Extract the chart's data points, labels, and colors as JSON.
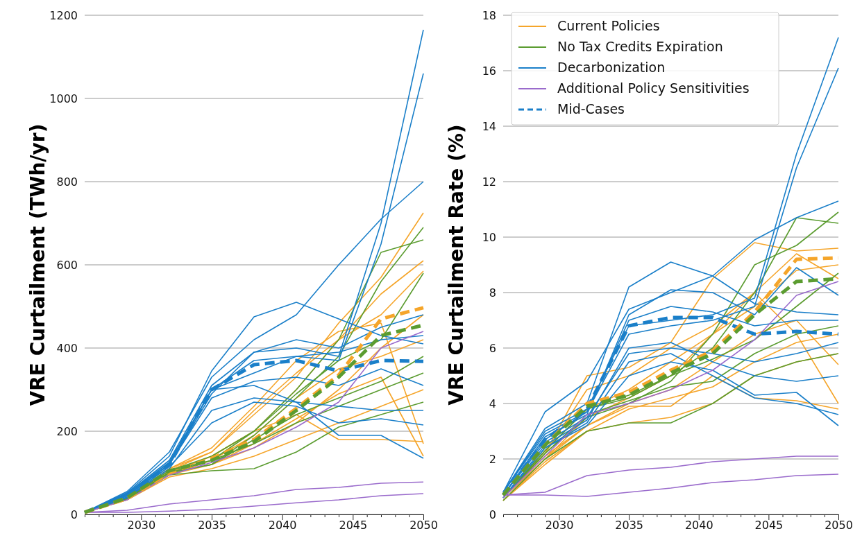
{
  "chart_data": [
    {
      "type": "line",
      "ylabel": "VRE Curtailment (TWh/yr)",
      "x": [
        2026,
        2029,
        2032,
        2035,
        2038,
        2041,
        2044,
        2047,
        2050
      ],
      "xlim": [
        2026,
        2050
      ],
      "xticks": [
        {
          "value": 2026,
          "label": null
        },
        {
          "value": 2027,
          "label": null
        },
        {
          "value": 2028,
          "label": null
        },
        {
          "value": 2029,
          "label": null
        },
        2030,
        {
          "value": 2031,
          "label": null
        },
        {
          "value": 2032,
          "label": null
        },
        {
          "value": 2033,
          "label": null
        },
        {
          "value": 2034,
          "label": null
        },
        2035,
        {
          "value": 2036,
          "label": null
        },
        {
          "value": 2037,
          "label": null
        },
        {
          "value": 2038,
          "label": null
        },
        {
          "value": 2039,
          "label": null
        },
        2040,
        {
          "value": 2041,
          "label": null
        },
        {
          "value": 2042,
          "label": null
        },
        {
          "value": 2043,
          "label": null
        },
        {
          "value": 2044,
          "label": null
        },
        2045,
        {
          "value": 2046,
          "label": null
        },
        {
          "value": 2047,
          "label": null
        },
        {
          "value": 2048,
          "label": null
        },
        {
          "value": 2049,
          "label": null
        },
        2050
      ],
      "ylim": [
        0,
        1200
      ],
      "yticks": [
        0,
        200,
        400,
        600,
        800,
        1000,
        1200
      ],
      "grid": "y",
      "legend": false,
      "series": [
        {
          "color": "#f5a52a",
          "values": [
            5,
            40,
            110,
            150,
            240,
            330,
            460,
            570,
            725
          ]
        },
        {
          "color": "#f5a52a",
          "values": [
            5,
            38,
            100,
            140,
            200,
            300,
            420,
            530,
            610
          ]
        },
        {
          "color": "#f5a52a",
          "values": [
            5,
            35,
            95,
            120,
            160,
            220,
            300,
            400,
            480
          ]
        },
        {
          "color": "#f5a52a",
          "values": [
            5,
            40,
            110,
            160,
            260,
            370,
            440,
            460,
            170
          ]
        },
        {
          "color": "#f5a52a",
          "values": [
            5,
            35,
            90,
            110,
            140,
            180,
            220,
            260,
            300
          ]
        },
        {
          "color": "#f5a52a",
          "values": [
            5,
            38,
            100,
            140,
            200,
            240,
            180,
            180,
            175
          ]
        },
        {
          "color": "#f5a52a",
          "values": [
            5,
            37,
            95,
            130,
            190,
            280,
            350,
            380,
            420
          ]
        },
        {
          "color": "#f5a52a",
          "values": [
            5,
            36,
            100,
            120,
            170,
            230,
            290,
            330,
            140
          ]
        },
        {
          "color": "#f5a52a",
          "values": [
            5,
            38,
            105,
            150,
            250,
            340,
            420,
            480,
            585
          ]
        },
        {
          "color": "#5b9c30",
          "values": [
            5,
            40,
            105,
            130,
            200,
            300,
            420,
            630,
            660
          ]
        },
        {
          "color": "#5b9c30",
          "values": [
            5,
            38,
            100,
            120,
            190,
            280,
            380,
            560,
            690
          ]
        },
        {
          "color": "#5b9c30",
          "values": [
            5,
            36,
            95,
            105,
            110,
            150,
            210,
            240,
            270
          ]
        },
        {
          "color": "#5b9c30",
          "values": [
            5,
            38,
            100,
            120,
            180,
            240,
            280,
            320,
            380
          ]
        },
        {
          "color": "#5b9c30",
          "values": [
            5,
            37,
            100,
            130,
            170,
            220,
            260,
            300,
            340
          ]
        },
        {
          "color": "#5b9c30",
          "values": [
            5,
            40,
            105,
            140,
            200,
            290,
            370,
            420,
            580
          ]
        },
        {
          "color": "#1a7fc9",
          "values": [
            5,
            50,
            130,
            310,
            390,
            400,
            380,
            700,
            1165
          ]
        },
        {
          "color": "#1a7fc9",
          "values": [
            5,
            48,
            125,
            300,
            370,
            380,
            370,
            650,
            1060
          ]
        },
        {
          "color": "#1a7fc9",
          "values": [
            5,
            55,
            150,
            330,
            420,
            480,
            600,
            710,
            800
          ]
        },
        {
          "color": "#1a7fc9",
          "values": [
            5,
            52,
            140,
            345,
            475,
            510,
            470,
            430,
            410
          ]
        },
        {
          "color": "#1a7fc9",
          "values": [
            5,
            45,
            120,
            290,
            390,
            420,
            400,
            450,
            480
          ]
        },
        {
          "color": "#1a7fc9",
          "values": [
            5,
            45,
            120,
            280,
            320,
            330,
            310,
            350,
            310
          ]
        },
        {
          "color": "#1a7fc9",
          "values": [
            5,
            42,
            115,
            220,
            270,
            260,
            220,
            230,
            215
          ]
        },
        {
          "color": "#1a7fc9",
          "values": [
            5,
            40,
            110,
            250,
            280,
            270,
            260,
            250,
            250
          ]
        },
        {
          "color": "#1a7fc9",
          "values": [
            5,
            48,
            125,
            300,
            310,
            270,
            190,
            190,
            135
          ]
        },
        {
          "color": "#1a7fc9",
          "values": [
            5,
            45,
            120,
            300,
            340,
            380,
            390,
            420,
            430
          ]
        },
        {
          "color": "#9a6bcc",
          "values": [
            5,
            10,
            25,
            35,
            45,
            60,
            65,
            75,
            78
          ]
        },
        {
          "color": "#9a6bcc",
          "values": [
            5,
            5,
            8,
            12,
            20,
            28,
            35,
            45,
            50
          ]
        },
        {
          "color": "#9a6bcc",
          "values": [
            5,
            35,
            95,
            125,
            160,
            210,
            270,
            400,
            440
          ]
        },
        {
          "color": "#1a7fc9",
          "line_style": "dashed",
          "values": [
            5,
            45,
            120,
            300,
            360,
            370,
            345,
            370,
            368
          ]
        },
        {
          "color": "#f5a52a",
          "line_style": "dashed",
          "values": [
            5,
            38,
            100,
            135,
            180,
            255,
            335,
            470,
            497
          ]
        },
        {
          "color": "#5b9c30",
          "line_style": "dashed",
          "values": [
            5,
            40,
            105,
            130,
            175,
            250,
            330,
            430,
            455
          ]
        }
      ]
    },
    {
      "type": "line",
      "ylabel": "VRE Curtailment Rate (%)",
      "x": [
        2026,
        2029,
        2032,
        2035,
        2038,
        2041,
        2044,
        2047,
        2050
      ],
      "xlim": [
        2026,
        2050
      ],
      "xticks": [
        {
          "value": 2026,
          "label": null
        },
        {
          "value": 2027,
          "label": null
        },
        {
          "value": 2028,
          "label": null
        },
        {
          "value": 2029,
          "label": null
        },
        2030,
        {
          "value": 2031,
          "label": null
        },
        {
          "value": 2032,
          "label": null
        },
        {
          "value": 2033,
          "label": null
        },
        {
          "value": 2034,
          "label": null
        },
        2035,
        {
          "value": 2036,
          "label": null
        },
        {
          "value": 2037,
          "label": null
        },
        {
          "value": 2038,
          "label": null
        },
        {
          "value": 2039,
          "label": null
        },
        2040,
        {
          "value": 2041,
          "label": null
        },
        {
          "value": 2042,
          "label": null
        },
        {
          "value": 2043,
          "label": null
        },
        {
          "value": 2044,
          "label": null
        },
        2045,
        {
          "value": 2046,
          "label": null
        },
        {
          "value": 2047,
          "label": null
        },
        {
          "value": 2048,
          "label": null
        },
        {
          "value": 2049,
          "label": null
        },
        2050
      ],
      "ylim": [
        0,
        18
      ],
      "yticks": [
        0,
        2,
        4,
        6,
        8,
        10,
        12,
        14,
        16,
        18
      ],
      "grid": "y",
      "legend": "top left",
      "series": [
        {
          "name": "Current Policies",
          "color": "#f5a52a",
          "values": [
            0.6,
            2.2,
            5.0,
            5.3,
            6.2,
            8.5,
            9.8,
            9.5,
            9.6
          ]
        },
        {
          "color": "#f5a52a",
          "values": [
            0.6,
            2.0,
            3.5,
            4.2,
            5.0,
            6.5,
            8.0,
            9.4,
            8.5
          ]
        },
        {
          "color": "#f5a52a",
          "values": [
            0.5,
            1.8,
            3.0,
            3.3,
            3.5,
            4.0,
            5.0,
            5.5,
            5.8
          ]
        },
        {
          "color": "#f5a52a",
          "values": [
            0.6,
            2.1,
            3.2,
            3.9,
            3.9,
            5.0,
            4.2,
            4.1,
            3.8
          ]
        },
        {
          "color": "#f5a52a",
          "values": [
            0.6,
            2.2,
            4.5,
            5.0,
            6.0,
            6.8,
            8.0,
            6.5,
            4.0
          ]
        },
        {
          "color": "#f5a52a",
          "values": [
            0.5,
            1.9,
            3.0,
            3.8,
            4.2,
            4.6,
            5.5,
            6.2,
            6.5
          ]
        },
        {
          "color": "#f5a52a",
          "values": [
            0.6,
            2.3,
            3.8,
            4.5,
            5.5,
            6.5,
            7.5,
            8.8,
            9.0
          ]
        },
        {
          "color": "#f5a52a",
          "values": [
            0.5,
            2.0,
            3.2,
            4.0,
            4.5,
            5.5,
            6.5,
            7.0,
            5.4
          ]
        },
        {
          "name": "No Tax Credits Expiration",
          "color": "#5b9c30",
          "values": [
            0.6,
            2.3,
            3.8,
            4.2,
            5.0,
            6.0,
            8.0,
            10.7,
            10.5
          ]
        },
        {
          "color": "#5b9c30",
          "values": [
            0.6,
            2.2,
            3.5,
            4.0,
            4.8,
            6.5,
            9.0,
            9.7,
            10.9
          ]
        },
        {
          "color": "#5b9c30",
          "values": [
            0.5,
            2.0,
            3.0,
            3.3,
            3.3,
            4.0,
            5.0,
            5.5,
            5.8
          ]
        },
        {
          "color": "#5b9c30",
          "values": [
            0.6,
            2.2,
            3.6,
            4.1,
            4.6,
            4.8,
            5.8,
            6.5,
            6.8
          ]
        },
        {
          "color": "#5b9c30",
          "values": [
            0.6,
            2.3,
            3.8,
            4.3,
            5.0,
            5.6,
            6.3,
            7.5,
            8.7
          ]
        },
        {
          "name": "Decarbonization",
          "color": "#1a7fc9",
          "values": [
            0.8,
            3.0,
            3.8,
            6.8,
            7.0,
            7.2,
            7.8,
            13.0,
            17.2
          ]
        },
        {
          "color": "#1a7fc9",
          "values": [
            0.8,
            2.9,
            3.7,
            6.5,
            6.8,
            7.0,
            7.5,
            12.5,
            16.1
          ]
        },
        {
          "color": "#1a7fc9",
          "values": [
            0.8,
            3.7,
            4.8,
            7.4,
            8.0,
            8.6,
            9.9,
            10.7,
            11.3
          ]
        },
        {
          "color": "#1a7fc9",
          "values": [
            0.8,
            3.1,
            4.0,
            8.2,
            9.1,
            8.6,
            7.6,
            7.3,
            7.2
          ]
        },
        {
          "color": "#1a7fc9",
          "values": [
            0.7,
            2.8,
            3.6,
            7.2,
            8.1,
            8.0,
            7.2,
            8.9,
            7.9
          ]
        },
        {
          "color": "#1a7fc9",
          "values": [
            0.6,
            2.5,
            3.4,
            6.0,
            6.2,
            5.5,
            5.0,
            4.8,
            5.0
          ]
        },
        {
          "color": "#1a7fc9",
          "values": [
            0.6,
            2.4,
            3.2,
            5.0,
            5.5,
            5.2,
            4.3,
            4.4,
            3.2
          ]
        },
        {
          "color": "#1a7fc9",
          "values": [
            0.7,
            2.6,
            3.5,
            5.8,
            6.0,
            5.8,
            5.5,
            5.8,
            6.2
          ]
        },
        {
          "color": "#1a7fc9",
          "values": [
            0.7,
            2.7,
            3.7,
            7.0,
            7.5,
            7.3,
            6.8,
            7.0,
            7.0
          ]
        },
        {
          "color": "#1a7fc9",
          "values": [
            0.6,
            2.4,
            3.3,
            5.5,
            5.8,
            5.0,
            4.2,
            4.0,
            3.6
          ]
        },
        {
          "name": "Additional Policy Sensitivities",
          "color": "#9a6bcc",
          "values": [
            0.7,
            0.8,
            1.4,
            1.6,
            1.7,
            1.9,
            2.0,
            2.1,
            2.1
          ]
        },
        {
          "color": "#9a6bcc",
          "values": [
            0.7,
            0.7,
            0.65,
            0.8,
            0.95,
            1.15,
            1.25,
            1.4,
            1.45
          ]
        },
        {
          "color": "#9a6bcc",
          "values": [
            0.6,
            2.1,
            3.6,
            4.0,
            4.5,
            5.2,
            6.3,
            7.9,
            8.4
          ]
        },
        {
          "name": "Mid-Cases",
          "color": "#1a7fc9",
          "line_style": "dashed",
          "values": [
            0.7,
            2.7,
            3.8,
            6.8,
            7.1,
            7.1,
            6.5,
            6.6,
            6.5
          ]
        },
        {
          "color": "#f5a52a",
          "line_style": "dashed",
          "values": [
            0.7,
            2.5,
            4.0,
            4.4,
            5.2,
            5.9,
            7.3,
            9.2,
            9.25
          ]
        },
        {
          "color": "#5b9c30",
          "line_style": "dashed",
          "values": [
            0.7,
            2.5,
            3.9,
            4.3,
            5.1,
            5.8,
            7.2,
            8.4,
            8.5
          ]
        }
      ]
    }
  ]
}
